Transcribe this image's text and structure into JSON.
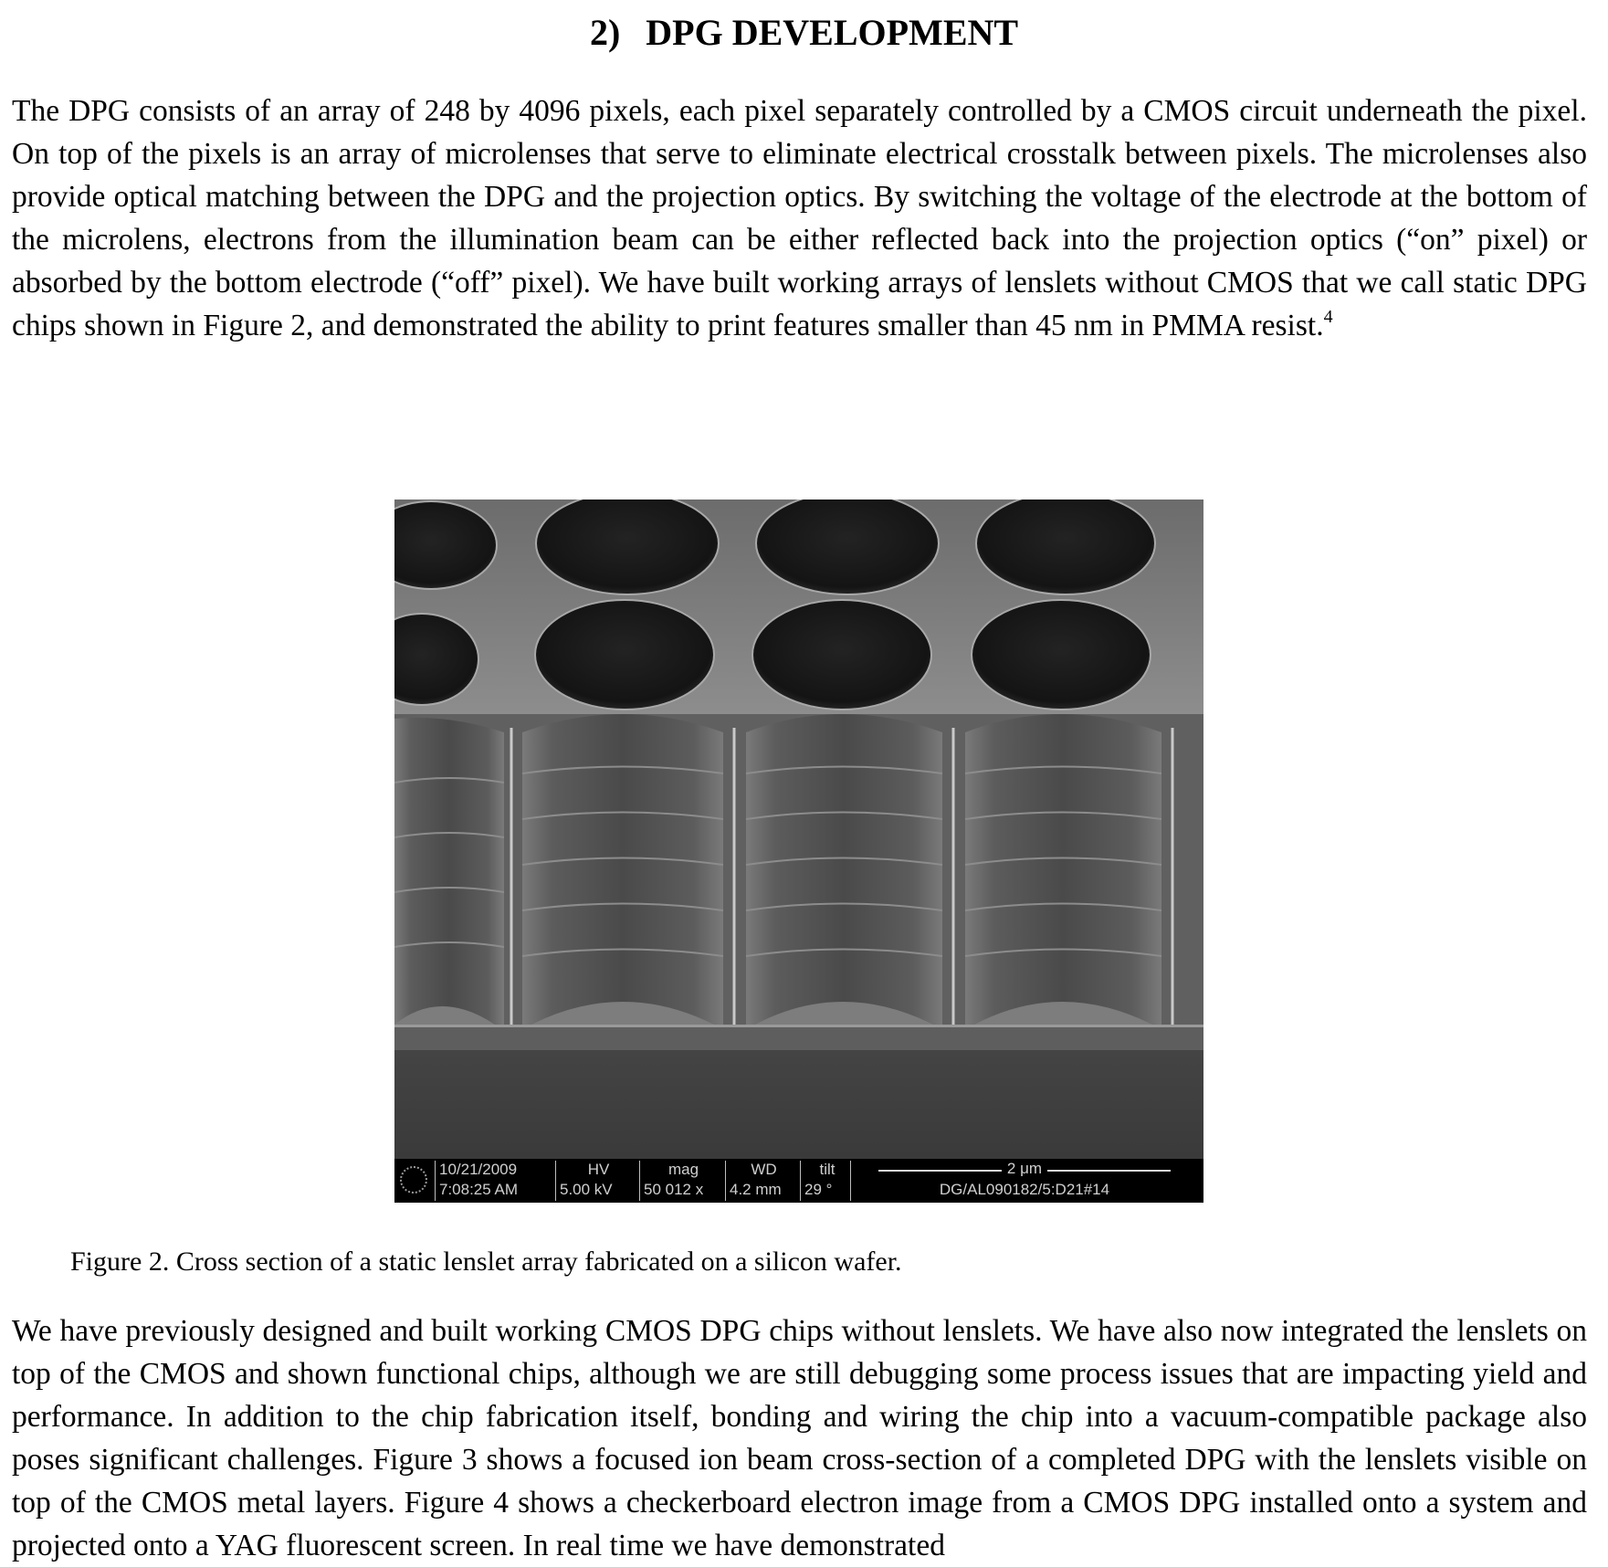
{
  "section": {
    "number": "2)",
    "title": "DPG DEVELOPMENT"
  },
  "paragraph1": {
    "text": "The DPG consists of an array of 248 by 4096 pixels, each pixel separately controlled by a CMOS circuit underneath the pixel.  On top of the pixels is an array of microlenses that serve to eliminate electrical crosstalk between pixels.  The microlenses also provide optical matching between the DPG and the projection optics.  By switching the voltage of the electrode at the bottom of the microlens, electrons from the illumination beam can be either reflected back into the projection optics (“on” pixel) or absorbed by the bottom electrode (“off” pixel).  We have built working arrays of lenslets without CMOS that we call static DPG chips shown in Figure 2, and demonstrated the ability to print features smaller than 45 nm in PMMA resist.",
    "footnote": "4"
  },
  "figure": {
    "sem_bar": {
      "date": "10/21/2009",
      "time": "7:08:25 AM",
      "hv_label": "HV",
      "hv_value": "5.00 kV",
      "mag_label": "mag",
      "mag_value": "50 012 x",
      "wd_label": "WD",
      "wd_value": "4.2 mm",
      "tilt_label": "tilt",
      "tilt_value": "29 °",
      "scale_label": "2 μm",
      "image_id": "DG/AL090182/5:D21#14"
    },
    "caption": "Figure 2.  Cross section of a static lenslet array fabricated on a silicon wafer."
  },
  "paragraph2": {
    "text": "We have previously designed and built working CMOS DPG chips without lenslets.  We have also now integrated the lenslets on top of the CMOS and shown functional chips, although we are still debugging some process issues that are impacting yield and performance.  In addition to the chip fabrication itself, bonding and wiring the chip into a vacuum-compatible package also poses significant challenges.  Figure 3 shows a focused ion beam cross-section of a completed DPG with the lenslets visible on top of the CMOS metal layers.  Figure 4 shows a checkerboard electron image from a CMOS DPG installed onto a system and projected onto a YAG fluorescent screen.  In real time we have demonstrated"
  }
}
